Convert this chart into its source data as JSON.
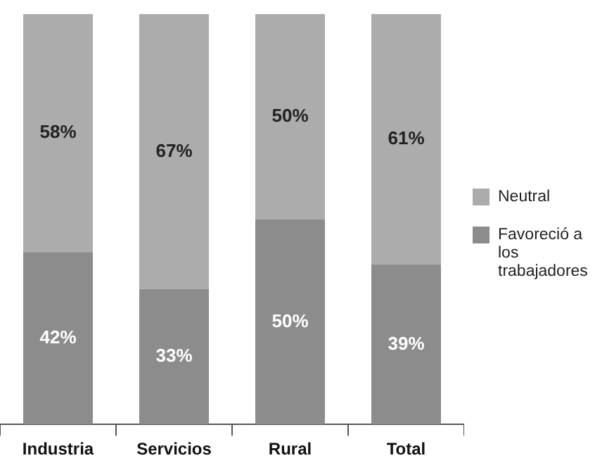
{
  "chart_data": {
    "type": "bar",
    "stacked": true,
    "categories": [
      "Industria",
      "Servicios",
      "Rural",
      "Total"
    ],
    "series": [
      {
        "name": "Favoreció a los trabajadores",
        "color": "#8c8c8c",
        "values": [
          42,
          33,
          50,
          39
        ],
        "value_labels": [
          "42%",
          "33%",
          "50%",
          "39%"
        ]
      },
      {
        "name": "Neutral",
        "color": "#acacac",
        "values": [
          58,
          67,
          50,
          61
        ],
        "value_labels": [
          "58%",
          "67%",
          "50%",
          "61%"
        ]
      }
    ],
    "tick_labels": "x",
    "legend": "right",
    "grid": false
  }
}
